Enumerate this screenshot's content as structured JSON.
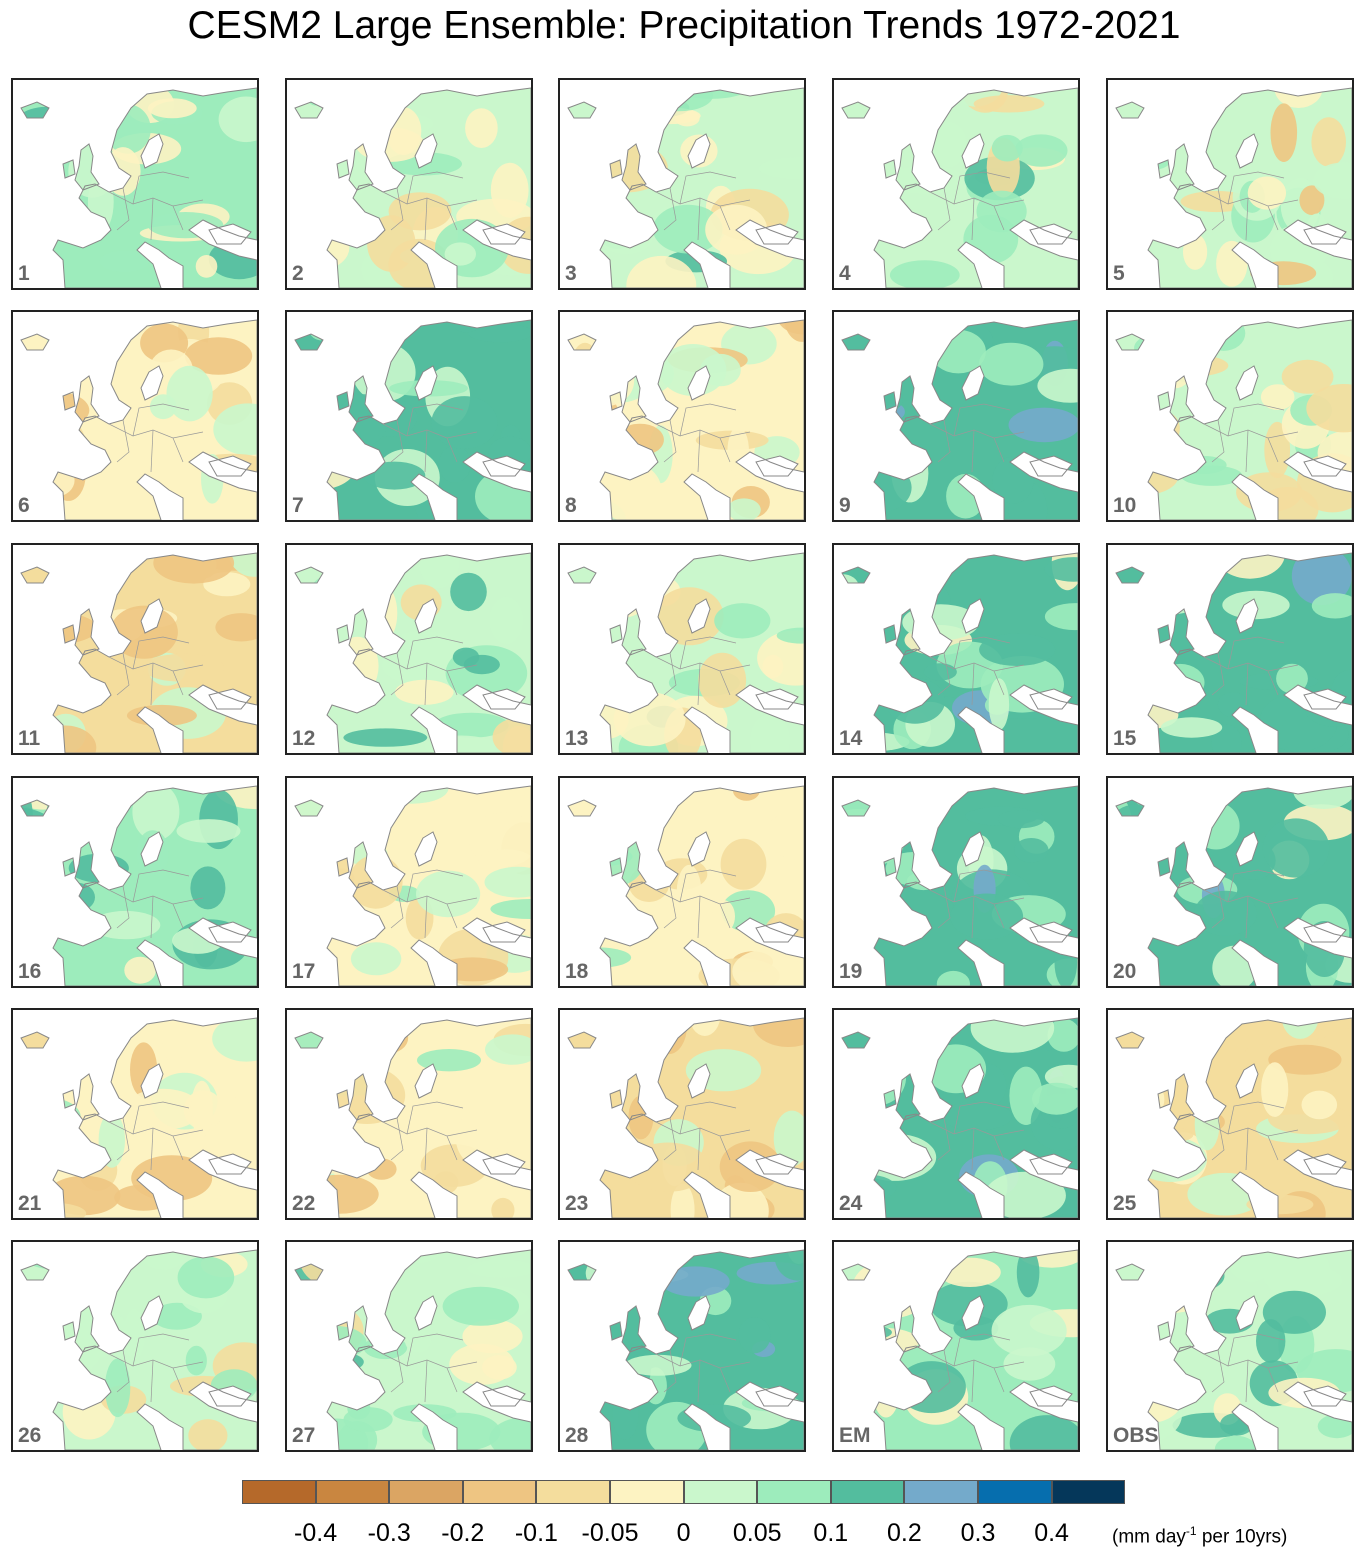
{
  "title": "CESM2 Large Ensemble: Precipitation Trends 1972-2021",
  "chart_data": {
    "type": "heatmap",
    "title": "CESM2 Large Ensemble: Precipitation Trends 1972-2021",
    "panels": [
      "1",
      "2",
      "3",
      "4",
      "5",
      "6",
      "7",
      "8",
      "9",
      "10",
      "11",
      "12",
      "13",
      "14",
      "15",
      "16",
      "17",
      "18",
      "19",
      "20",
      "21",
      "22",
      "23",
      "24",
      "25",
      "26",
      "27",
      "28",
      "EM",
      "OBS"
    ],
    "grid_layout": {
      "rows": 6,
      "cols": 5
    },
    "panel_tendency": [
      0.05,
      0.02,
      0.04,
      0.0,
      0.0,
      -0.05,
      0.1,
      -0.05,
      0.12,
      0.0,
      -0.08,
      0.04,
      0.02,
      0.1,
      0.1,
      0.06,
      -0.04,
      -0.02,
      0.1,
      0.1,
      -0.04,
      -0.02,
      -0.06,
      0.12,
      -0.06,
      0.0,
      0.02,
      0.12,
      0.05,
      0.04
    ],
    "colorbar": {
      "bounds": [
        -0.4,
        -0.3,
        -0.2,
        -0.1,
        -0.05,
        0,
        0.05,
        0.1,
        0.2,
        0.3,
        0.4
      ],
      "tick_labels": [
        "-0.4",
        "-0.3",
        "-0.2",
        "-0.1",
        "-0.05",
        "0",
        "0.05",
        "0.1",
        "0.2",
        "0.3",
        "0.4"
      ],
      "colors": [
        "#b5692a",
        "#c98640",
        "#dba563",
        "#eec582",
        "#f4dd9d",
        "#fdf3c2",
        "#caf7cc",
        "#9decbc",
        "#53bd9e",
        "#74aacb",
        "#066eae",
        "#05375a"
      ],
      "units_main": "(mm day",
      "units_sup": "-1",
      "units_tail": " per 10yrs)"
    },
    "missing_color": "#ffffff",
    "coastline_color": "#888888"
  }
}
